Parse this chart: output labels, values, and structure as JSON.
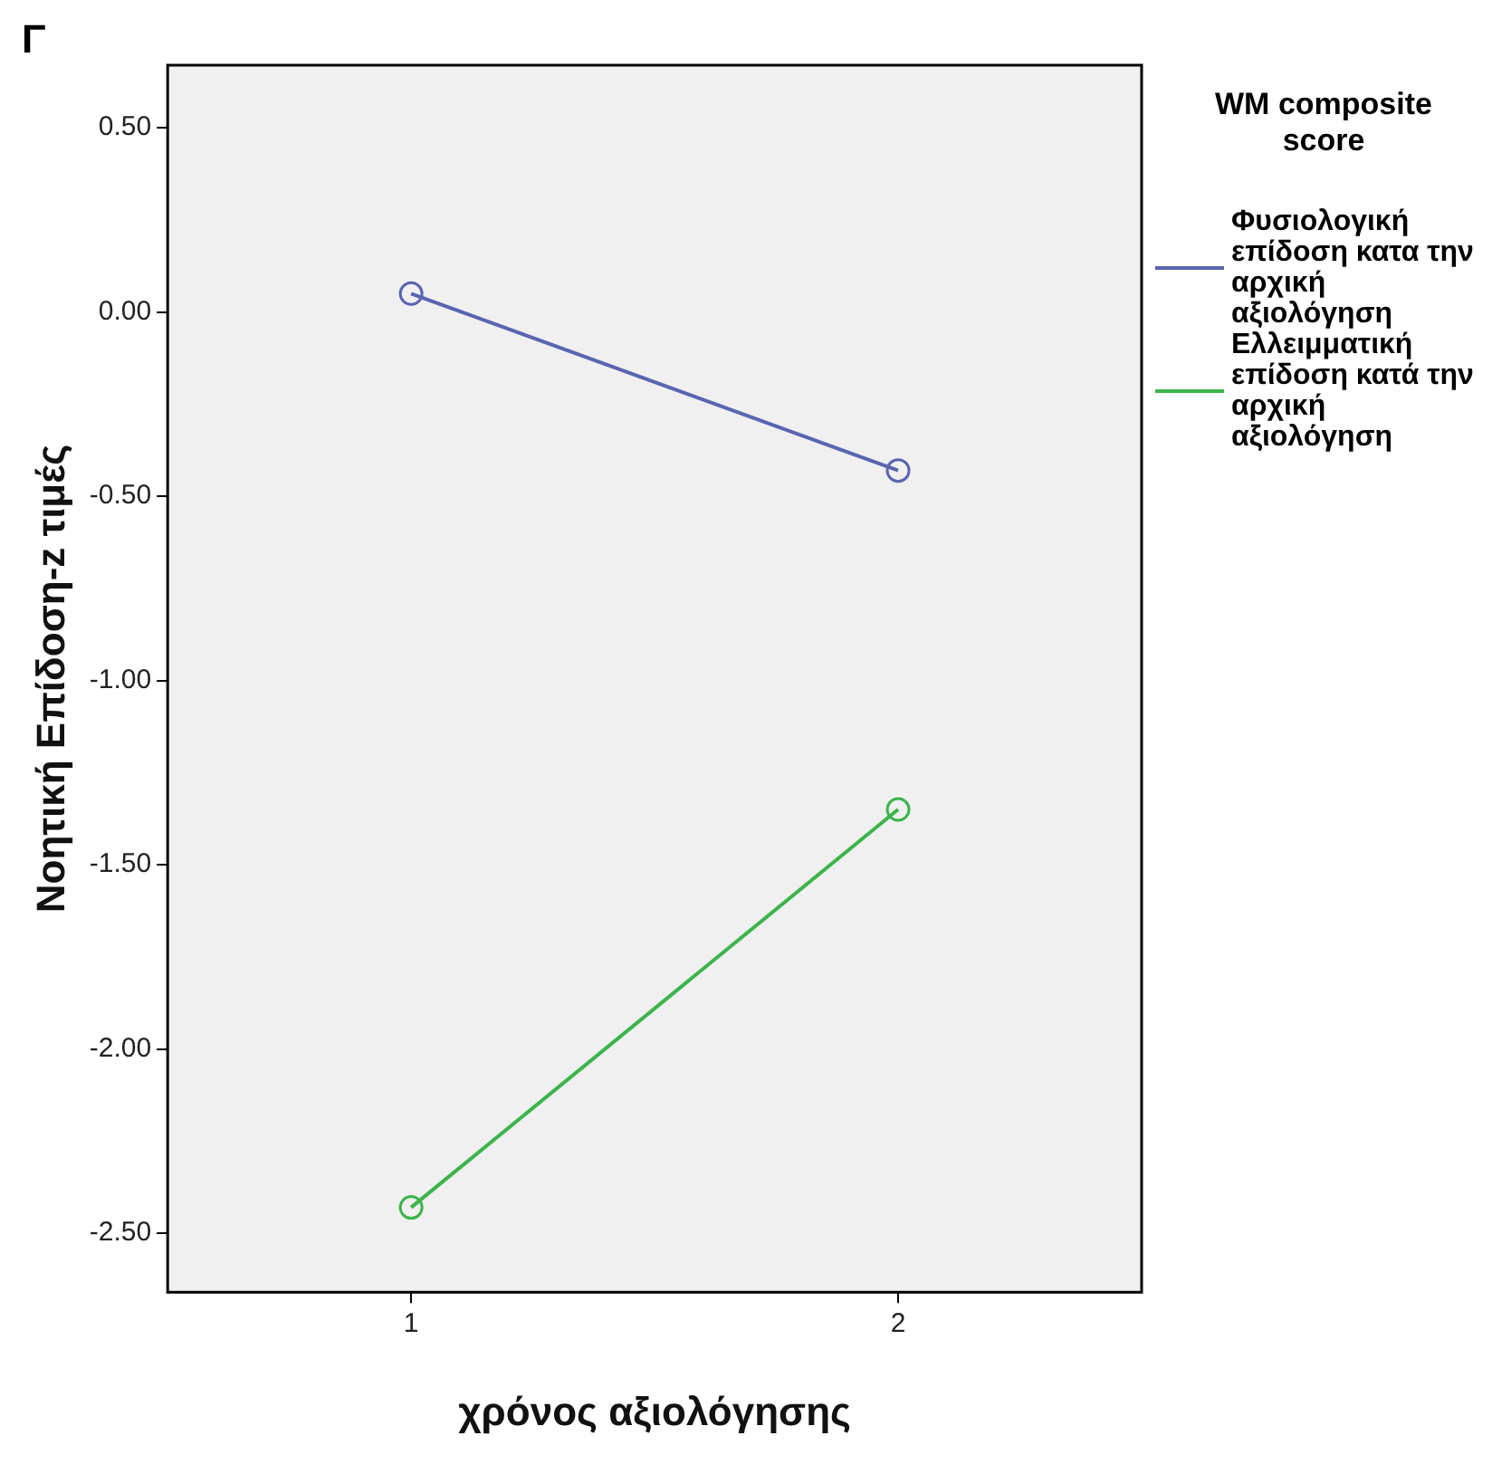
{
  "chart_data": {
    "type": "line",
    "xlabel": "χρόνος αξιολόγησης",
    "ylabel": "Νοητική Επίδοση-z τιμές",
    "legend_title": "WM composite score",
    "annotations": [
      "Γ"
    ],
    "categories": [
      "1",
      "2"
    ],
    "series": [
      {
        "name": "Φυσιολογική επίδοση κατα την αρχική αξιολόγηση",
        "color": "#5a64b0",
        "values": [
          0.05,
          -0.43
        ]
      },
      {
        "name": "Ελλειμματική επίδοση κατά την αρχική αξιολόγηση",
        "color": "#3cb44b",
        "values": [
          -2.43,
          -1.35
        ]
      }
    ],
    "ylim": [
      -2.66,
      0.67
    ],
    "yticks": [
      {
        "value": 0.5,
        "label": "0.50"
      },
      {
        "value": 0,
        "label": "0.00"
      },
      {
        "value": -0.5,
        "label": "-0.50"
      },
      {
        "value": -1,
        "label": "-1.00"
      },
      {
        "value": -1.5,
        "label": "-1.50"
      },
      {
        "value": -2,
        "label": "-2.00"
      },
      {
        "value": -2.5,
        "label": "-2.50"
      }
    ],
    "grid": false,
    "legend": "right",
    "marker": "circle",
    "line_style": "solid"
  }
}
